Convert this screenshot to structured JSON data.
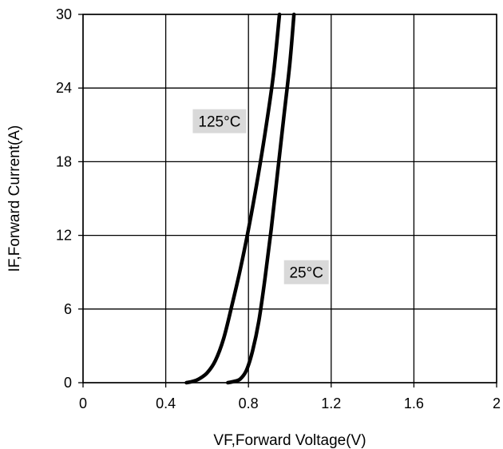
{
  "chart_data": {
    "type": "line",
    "title": "",
    "xlabel": "VF,Forward Voltage(V)",
    "ylabel": "IF,Forward Current(A)",
    "xlim": [
      0,
      2
    ],
    "ylim": [
      0,
      30
    ],
    "xticks": [
      0,
      0.4,
      0.8,
      1.2,
      1.6,
      2
    ],
    "xtick_labels": [
      "0",
      "0.4",
      "0.8",
      "1.2",
      "1.6",
      "2"
    ],
    "yticks": [
      0,
      6,
      12,
      18,
      24,
      30
    ],
    "ytick_labels": [
      "0",
      "6",
      "12",
      "18",
      "24",
      "30"
    ],
    "grid": true,
    "series": [
      {
        "name": "125°C",
        "x": [
          0.5,
          0.53,
          0.56,
          0.6,
          0.64,
          0.68,
          0.72,
          0.76,
          0.8,
          0.84,
          0.88,
          0.92,
          0.95
        ],
        "y": [
          0.0,
          0.1,
          0.3,
          0.8,
          1.8,
          3.6,
          6.3,
          9.2,
          12.5,
          16.2,
          20.3,
          25.0,
          30.0
        ]
      },
      {
        "name": "25°C",
        "x": [
          0.7,
          0.73,
          0.76,
          0.79,
          0.82,
          0.85,
          0.88,
          0.91,
          0.94,
          0.97,
          1.0,
          1.02
        ],
        "y": [
          0.0,
          0.1,
          0.3,
          1.0,
          2.6,
          5.0,
          8.5,
          12.5,
          17.0,
          21.5,
          26.0,
          30.0
        ]
      }
    ],
    "annotations": [
      {
        "text": "125°C",
        "x": 0.66,
        "y": 21.3
      },
      {
        "text": "25°C",
        "x": 1.08,
        "y": 9.0
      }
    ],
    "colors": {
      "line": "#000000",
      "grid": "#000000",
      "label_bg": "#d9d9d9"
    }
  }
}
